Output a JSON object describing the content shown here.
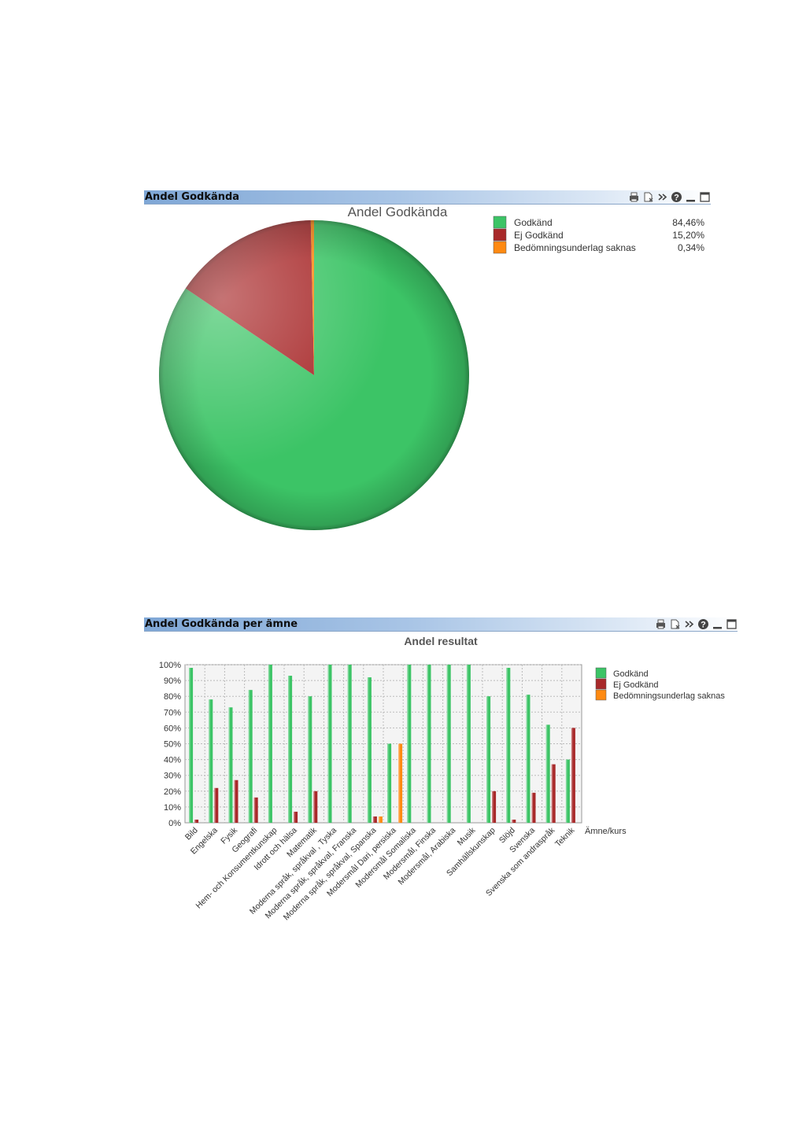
{
  "pie_panel": {
    "caption": "Andel Godkända",
    "icons": [
      "print-icon",
      "clear-selection-icon",
      "expand-icon",
      "help-icon",
      "minimize-icon",
      "maximize-icon"
    ]
  },
  "bar_panel": {
    "caption": "Andel Godkända per ämne",
    "icons": [
      "print-icon",
      "clear-selection-icon",
      "expand-icon",
      "help-icon",
      "minimize-icon",
      "maximize-icon"
    ]
  },
  "colors": {
    "godkand": "#3cc466",
    "ej_godkand": "#a8292a",
    "saknas": "#ff8a12"
  },
  "chart_data": [
    {
      "type": "pie",
      "title": "Andel Godkända",
      "legend_position": "top-right",
      "slices": [
        {
          "name": "Godkänd",
          "value": 84.46,
          "label": "84,46%"
        },
        {
          "name": "Ej Godkänd",
          "value": 15.2,
          "label": "15,20%"
        },
        {
          "name": "Bedömningsunderlag saknas",
          "value": 0.34,
          "label": "0,34%"
        }
      ]
    },
    {
      "type": "bar",
      "title": "Andel resultat",
      "xlabel": "Ämne/kurs",
      "ylabel": "",
      "ylim": [
        0,
        100
      ],
      "yticks": [
        "0%",
        "10%",
        "20%",
        "30%",
        "40%",
        "50%",
        "60%",
        "70%",
        "80%",
        "90%",
        "100%"
      ],
      "grid": true,
      "legend_position": "top-right",
      "categories": [
        "Bild",
        "Engelska",
        "Fysik",
        "Geografi",
        "Hem- och Konsumentkunskap",
        "Idrott och hälsa",
        "Matematik",
        "Moderna språk, språkval , Tyska",
        "Moderna språk, språkval, Franska",
        "Moderna språk, språkval, Spanska",
        "Modersmål Dari, persiska",
        "Modersmål Somaliska",
        "Modersmål, Finska",
        "Modersmål, Arabiska",
        "Musik",
        "Samhällskunskap",
        "Slöjd",
        "Svenska",
        "Svenska som andraspråk",
        "Teknik"
      ],
      "series": [
        {
          "name": "Godkänd",
          "values": [
            98,
            78,
            73,
            84,
            100,
            93,
            80,
            100,
            100,
            92,
            50,
            100,
            100,
            100,
            100,
            80,
            98,
            81,
            62,
            40
          ]
        },
        {
          "name": "Ej Godkänd",
          "values": [
            2,
            22,
            27,
            16,
            0,
            7,
            20,
            0,
            0,
            4,
            0,
            0,
            0,
            0,
            0,
            20,
            2,
            19,
            37,
            60
          ]
        },
        {
          "name": "Bedömningsunderlag saknas",
          "values": [
            0,
            0,
            0,
            0,
            0,
            0,
            0,
            0,
            0,
            4,
            50,
            0,
            0,
            0,
            0,
            0,
            0,
            0,
            0,
            0
          ]
        }
      ]
    }
  ]
}
